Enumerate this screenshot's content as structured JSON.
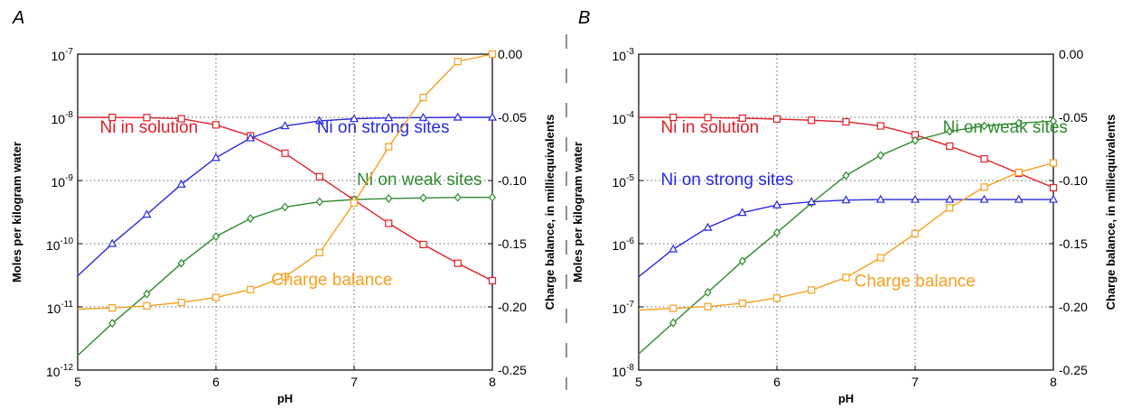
{
  "chart_data": [
    {
      "type": "line",
      "panel_label": "A",
      "xlabel": "pH",
      "ylabel": "Moles per kilogram water",
      "y2label": "Charge balance, in milliequivalents",
      "xlim": [
        5,
        8
      ],
      "xticks": [
        "5",
        "6",
        "7",
        "8"
      ],
      "y_log_exp_range": [
        -12,
        -7
      ],
      "ylim": [
        1e-12,
        1e-07
      ],
      "y_scale": "log",
      "yticks": [
        {
          "base": "10",
          "exp": "-12"
        },
        {
          "base": "10",
          "exp": "-11"
        },
        {
          "base": "10",
          "exp": "-10"
        },
        {
          "base": "10",
          "exp": "-9"
        },
        {
          "base": "10",
          "exp": "-8"
        },
        {
          "base": "10",
          "exp": "-7"
        }
      ],
      "y2lim": [
        -0.25,
        0.0
      ],
      "y2ticks": [
        "-0.25",
        "-0.20",
        "-0.15",
        "-0.10",
        "-0.05",
        "0.00"
      ],
      "grid": "dotted",
      "x": [
        5.0,
        5.25,
        5.5,
        5.75,
        6.0,
        6.25,
        6.5,
        6.75,
        7.0,
        7.25,
        7.5,
        7.75,
        8.0
      ],
      "series": [
        {
          "name": "Ni in solution",
          "axis": "left",
          "color": "#e0202a",
          "marker": "square",
          "values": [
            1e-08,
            1e-08,
            9.9e-09,
            9.5e-09,
            7.6e-09,
            5.1e-09,
            2.7e-09,
            1.15e-09,
            4.9e-10,
            2.1e-10,
            9.7e-11,
            4.9e-11,
            2.6e-11
          ],
          "label_x": 5.16,
          "label_y": 5.7e-09
        },
        {
          "name": "Ni on strong sites",
          "axis": "left",
          "color": "#2a2ae0",
          "marker": "triangle",
          "values": [
            3.1e-11,
            1e-10,
            2.9e-10,
            8.7e-10,
            2.3e-09,
            4.7e-09,
            7.3e-09,
            8.8e-09,
            9.5e-09,
            9.8e-09,
            9.9e-09,
            1e-08,
            1e-08
          ],
          "label_x": 6.73,
          "label_y": 5.7e-09
        },
        {
          "name": "Ni on weak sites",
          "axis": "left",
          "color": "#2e8b2e",
          "marker": "diamond",
          "values": [
            1.7e-12,
            5.5e-12,
            1.6e-11,
            4.9e-11,
            1.3e-10,
            2.5e-10,
            3.8e-10,
            4.6e-10,
            5e-10,
            5.2e-10,
            5.3e-10,
            5.4e-10,
            5.4e-10
          ],
          "label_x": 7.02,
          "label_y": 8.5e-10
        },
        {
          "name": "Charge balance",
          "axis": "right",
          "color": "#f5a020",
          "marker": "square",
          "values": [
            -0.2018,
            -0.2008,
            -0.1992,
            -0.1965,
            -0.1926,
            -0.1863,
            -0.1762,
            -0.1571,
            -0.1177,
            -0.0733,
            -0.0343,
            -0.0058,
            0.0
          ],
          "label_x": 6.4,
          "label_y2": -0.183
        }
      ]
    },
    {
      "type": "line",
      "panel_label": "B",
      "xlabel": "pH",
      "ylabel": "Moles per kilogram water",
      "y2label": "Charge balance, in milliequivalents",
      "xlim": [
        5,
        8
      ],
      "xticks": [
        "5",
        "6",
        "7",
        "8"
      ],
      "y_log_exp_range": [
        -8,
        -3
      ],
      "ylim": [
        1e-08,
        0.001
      ],
      "y_scale": "log",
      "yticks": [
        {
          "base": "10",
          "exp": "-8"
        },
        {
          "base": "10",
          "exp": "-7"
        },
        {
          "base": "10",
          "exp": "-6"
        },
        {
          "base": "10",
          "exp": "-5"
        },
        {
          "base": "10",
          "exp": "-4"
        },
        {
          "base": "10",
          "exp": "-3"
        }
      ],
      "y2lim": [
        -0.25,
        0.0
      ],
      "y2ticks": [
        "-0.25",
        "-0.20",
        "-0.15",
        "-0.10",
        "-0.05",
        "0.00"
      ],
      "grid": "dotted",
      "x": [
        5.0,
        5.25,
        5.5,
        5.75,
        6.0,
        6.25,
        6.5,
        6.75,
        7.0,
        7.25,
        7.5,
        7.75,
        8.0
      ],
      "series": [
        {
          "name": "Ni in solution",
          "axis": "left",
          "color": "#e0202a",
          "marker": "square",
          "values": [
            0.0001,
            0.0001,
            9.9e-05,
            9.7e-05,
            9.4e-05,
            9e-05,
            8.5e-05,
            7.3e-05,
            5.3e-05,
            3.5e-05,
            2.2e-05,
            1.3e-05,
            7.7e-06
          ],
          "label_x": 5.16,
          "label_y": 5.7e-05
        },
        {
          "name": "Ni on weak sites",
          "axis": "left",
          "color": "#2e8b2e",
          "marker": "diamond",
          "values": [
            1.8e-08,
            5.6e-08,
            1.7e-07,
            5.3e-07,
            1.5e-06,
            4.4e-06,
            1.2e-05,
            2.5e-05,
            4.3e-05,
            6e-05,
            7.3e-05,
            8.1e-05,
            8.7e-05
          ],
          "label_x": 7.2,
          "label_y": 5.7e-05
        },
        {
          "name": "Ni on strong sites",
          "axis": "left",
          "color": "#2a2ae0",
          "marker": "triangle",
          "values": [
            3e-07,
            8.2e-07,
            1.8e-06,
            3.1e-06,
            4.1e-06,
            4.6e-06,
            4.9e-06,
            5e-06,
            5e-06,
            5e-06,
            5e-06,
            5e-06,
            5e-06
          ],
          "label_x": 5.16,
          "label_y": 8.5e-06
        },
        {
          "name": "Charge balance",
          "axis": "right",
          "color": "#f5a020",
          "marker": "square",
          "values": [
            -0.2025,
            -0.2012,
            -0.1998,
            -0.1971,
            -0.193,
            -0.1867,
            -0.1767,
            -0.1611,
            -0.142,
            -0.1216,
            -0.1052,
            -0.0935,
            -0.0861
          ],
          "label_x": 6.56,
          "label_y2": -0.184
        }
      ]
    }
  ]
}
